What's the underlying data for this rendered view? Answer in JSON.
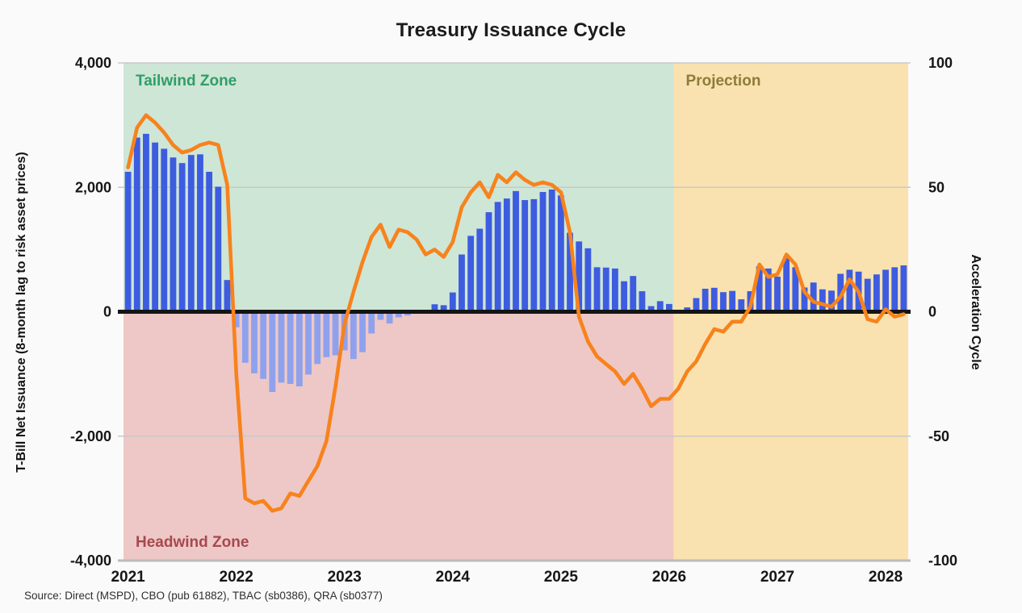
{
  "title": "Treasury Issuance Cycle",
  "source": "Source: Direct (MSPD), CBO (pub 61882), TBAC (sb0386), QRA (sb0377)",
  "left_axis": {
    "label": "T-Bill Net Issuance (8-month lag to risk asset prices)",
    "min": -4000,
    "max": 4000,
    "tick_values": [
      4000,
      2000,
      0,
      -2000,
      -4000
    ],
    "tick_labels": [
      "4,000",
      "2,000",
      "0",
      "-2,000",
      "-4,000"
    ]
  },
  "right_axis": {
    "label": "Acceleration Cycle",
    "min": -100,
    "max": 100,
    "tick_values": [
      100,
      50,
      0,
      -50,
      -100
    ],
    "tick_labels": [
      "100",
      "50",
      "0",
      "-50",
      "-100"
    ]
  },
  "x_axis": {
    "tick_months": [
      "2021-01",
      "2022-01",
      "2023-01",
      "2024-01",
      "2025-01",
      "2026-01",
      "2027-01",
      "2028-01"
    ],
    "tick_labels": [
      "2021",
      "2022",
      "2023",
      "2024",
      "2025",
      "2026",
      "2027",
      "2028"
    ]
  },
  "zones": [
    {
      "label": "Tailwind Zone",
      "from_month": "2021-01",
      "to_month": "2026-02",
      "y_from": 0,
      "y_to": 4000,
      "fill": "#cee6d6",
      "label_color": "#2f9e68",
      "label_anchor": "top"
    },
    {
      "label": "Headwind Zone",
      "from_month": "2021-01",
      "to_month": "2026-02",
      "y_from": -4000,
      "y_to": 0,
      "fill": "#eec8c6",
      "label_color": "#a6494f",
      "label_anchor": "bottom"
    },
    {
      "label": "Projection",
      "from_month": "2026-02",
      "to_month": null,
      "y_from": -4000,
      "y_to": 4000,
      "fill": "#f9e2af",
      "label_color": "#8d7c3a",
      "label_anchor": "top"
    }
  ],
  "colors": {
    "bar_positive": "#3d5ce0",
    "bar_negative": "#8fa1ed",
    "line": "#f8821c",
    "zero_line": "#141414",
    "grid": "#c9c9c9",
    "grid_edge": "#bbbbbb",
    "tick_text": "#161616"
  },
  "chart_data": {
    "type": "bar+line",
    "x_months": [
      "2021-01",
      "2021-02",
      "2021-03",
      "2021-04",
      "2021-05",
      "2021-06",
      "2021-07",
      "2021-08",
      "2021-09",
      "2021-10",
      "2021-11",
      "2021-12",
      "2022-01",
      "2022-02",
      "2022-03",
      "2022-04",
      "2022-05",
      "2022-06",
      "2022-07",
      "2022-08",
      "2022-09",
      "2022-10",
      "2022-11",
      "2022-12",
      "2023-01",
      "2023-02",
      "2023-03",
      "2023-04",
      "2023-05",
      "2023-06",
      "2023-07",
      "2023-08",
      "2023-09",
      "2023-10",
      "2023-11",
      "2023-12",
      "2024-01",
      "2024-02",
      "2024-03",
      "2024-04",
      "2024-05",
      "2024-06",
      "2024-07",
      "2024-08",
      "2024-09",
      "2024-10",
      "2024-11",
      "2024-12",
      "2025-01",
      "2025-02",
      "2025-03",
      "2025-04",
      "2025-05",
      "2025-06",
      "2025-07",
      "2025-08",
      "2025-09",
      "2025-10",
      "2025-11",
      "2025-12",
      "2026-01",
      "2026-02",
      "2026-03",
      "2026-04",
      "2026-05",
      "2026-06",
      "2026-07",
      "2026-08",
      "2026-09",
      "2026-10",
      "2026-11",
      "2026-12",
      "2027-01",
      "2027-02",
      "2027-03",
      "2027-04",
      "2027-05",
      "2027-06",
      "2027-07",
      "2027-08",
      "2027-09",
      "2027-10",
      "2027-11",
      "2027-12",
      "2028-01",
      "2028-02",
      "2028-03"
    ],
    "series": [
      {
        "name": "T-Bill Net Issuance",
        "type": "bar",
        "axis": "left",
        "values": [
          2250,
          2800,
          2860,
          2720,
          2620,
          2480,
          2390,
          2520,
          2530,
          2250,
          2010,
          510,
          -250,
          -820,
          -990,
          -1080,
          -1290,
          -1140,
          -1160,
          -1200,
          -1010,
          -840,
          -730,
          -700,
          -620,
          -760,
          -650,
          -350,
          -130,
          -190,
          -90,
          -60,
          -25,
          -10,
          120,
          105,
          310,
          920,
          1220,
          1335,
          1600,
          1765,
          1820,
          1940,
          1795,
          1810,
          1925,
          1965,
          1870,
          1270,
          1130,
          1020,
          715,
          710,
          695,
          490,
          575,
          330,
          90,
          170,
          125,
          30,
          70,
          220,
          370,
          385,
          315,
          335,
          200,
          330,
          730,
          695,
          565,
          890,
          715,
          390,
          470,
          360,
          340,
          610,
          675,
          645,
          530,
          600,
          675,
          715,
          745
        ]
      },
      {
        "name": "Acceleration Cycle",
        "type": "line",
        "axis": "right",
        "values": [
          58,
          74,
          79,
          76,
          72,
          67,
          64,
          65,
          67,
          68,
          67,
          51,
          -25,
          -75,
          -77,
          -76,
          -80,
          -79,
          -73,
          -74,
          -68,
          -62,
          -52,
          -30,
          -5,
          8,
          20,
          30,
          35,
          26,
          33,
          32,
          29,
          23,
          25,
          22,
          28,
          42,
          48,
          52,
          46,
          55,
          52,
          56,
          53,
          51,
          52,
          51,
          48,
          32,
          -2,
          -12,
          -18,
          -21,
          -24,
          -29,
          -25,
          -31,
          -38,
          -35,
          -35,
          -31,
          -24,
          -20,
          -13,
          -7,
          -8,
          -4,
          -4,
          2,
          19,
          14,
          15,
          23,
          19,
          8,
          4,
          3,
          2,
          6,
          13,
          8,
          -3,
          -4,
          1,
          -2,
          -1
        ]
      }
    ],
    "ylim_left": [
      -4000,
      4000
    ],
    "ylim_right": [
      -100,
      100
    ],
    "grid": true,
    "legend": false
  }
}
